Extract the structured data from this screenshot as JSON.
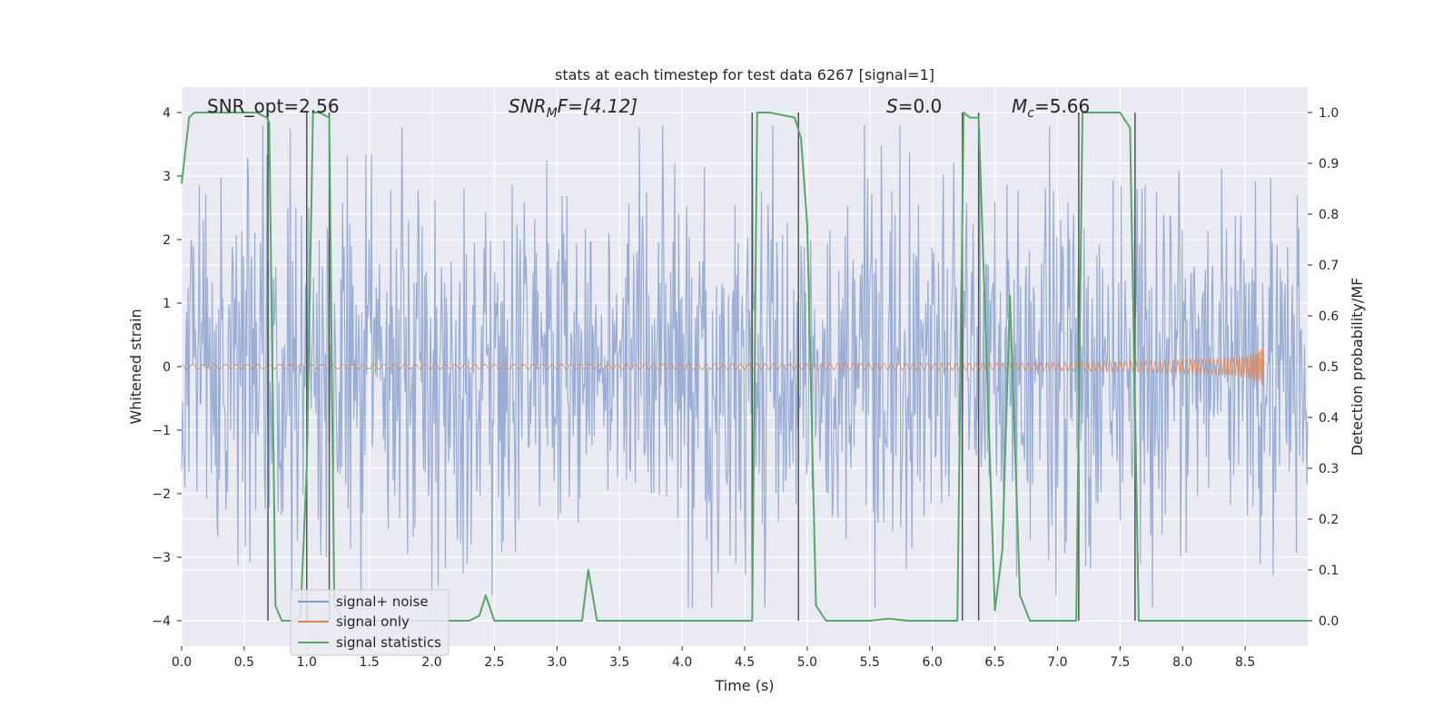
{
  "chart_data": {
    "type": "line",
    "title": "stats at each timestep for test data 6267 [signal=1]",
    "xlabel": "Time (s)",
    "ylabel": "Whitened strain",
    "y2label": "Detection probability/MF",
    "xlim": [
      0.0,
      9.0
    ],
    "ylim": [
      -4.4,
      4.4
    ],
    "y2lim": [
      -0.05,
      1.05
    ],
    "xticks": [
      "0.0",
      "0.5",
      "1.0",
      "1.5",
      "2.0",
      "2.5",
      "3.0",
      "3.5",
      "4.0",
      "4.5",
      "5.0",
      "5.5",
      "6.0",
      "6.5",
      "7.0",
      "7.5",
      "8.0",
      "8.5"
    ],
    "yticks": [
      "−4",
      "−3",
      "−2",
      "−1",
      "0",
      "1",
      "2",
      "3",
      "4"
    ],
    "y2ticks": [
      "0.0",
      "0.1",
      "0.2",
      "0.3",
      "0.4",
      "0.5",
      "0.6",
      "0.7",
      "0.8",
      "0.9",
      "1.0"
    ],
    "grid": true,
    "legend_position": "lower-left",
    "annotations": {
      "snr_opt": "SNR_opt=2.56",
      "snr_mf_base": "SNR",
      "snr_mf_sub": "M",
      "snr_mf_rest": "F=[4.12]",
      "s_base": "S",
      "s_rest": "=0.0",
      "mc_base": "M",
      "mc_sub": "c",
      "mc_rest": "=5.66"
    },
    "colors": {
      "noise": "#7f9acb",
      "signal": "#dd8452",
      "stats": "#55a868",
      "vlines": "#555555",
      "background": "#eaeaf2"
    },
    "series": [
      {
        "name": "signal+ noise",
        "kind": "noise",
        "x_range": [
          0.0,
          9.0
        ],
        "amplitude_typical": 1.6,
        "amplitude_peak": 3.8
      },
      {
        "name": "signal only",
        "kind": "chirp",
        "x_start": 0.0,
        "x_end": 8.65,
        "final_amplitude": 0.33
      },
      {
        "name": "signal statistics",
        "kind": "probability",
        "x": [
          0.0,
          0.06,
          0.1,
          0.2,
          0.3,
          0.4,
          0.5,
          0.6,
          0.68,
          0.7,
          0.75,
          0.8,
          0.9,
          0.95,
          1.0,
          1.05,
          1.1,
          1.18,
          1.22,
          1.3,
          1.4,
          2.3,
          2.38,
          2.43,
          2.5,
          2.6,
          3.2,
          3.25,
          3.32,
          3.4,
          4.5,
          4.56,
          4.6,
          4.7,
          4.9,
          4.95,
          5.0,
          5.07,
          5.15,
          5.5,
          5.65,
          5.8,
          6.2,
          6.25,
          6.3,
          6.37,
          6.5,
          6.56,
          6.62,
          6.7,
          6.78,
          7.0,
          7.15,
          7.2,
          7.25,
          7.5,
          7.58,
          7.65,
          7.72,
          8.0,
          8.3,
          8.6,
          9.0
        ],
        "y": [
          0.86,
          0.99,
          1.0,
          1.0,
          1.0,
          1.0,
          1.0,
          1.0,
          0.99,
          0.98,
          0.03,
          0.0,
          0.0,
          0.01,
          0.3,
          1.0,
          1.0,
          0.99,
          0.03,
          0.0,
          0.0,
          0.0,
          0.01,
          0.05,
          0.0,
          0.0,
          0.0,
          0.1,
          0.0,
          0.0,
          0.0,
          0.0,
          1.0,
          1.0,
          0.99,
          0.95,
          0.78,
          0.03,
          0.0,
          0.0,
          0.004,
          0.0,
          0.0,
          1.0,
          0.99,
          0.99,
          0.02,
          0.14,
          0.64,
          0.05,
          0.0,
          0.0,
          0.0,
          1.0,
          1.0,
          1.0,
          0.97,
          0.0,
          0.0,
          0.0,
          0.0,
          0.0,
          0.0
        ]
      }
    ],
    "vertical_lines_x": [
      0.69,
      1.0,
      1.18,
      4.56,
      4.93,
      6.24,
      6.37,
      7.17,
      7.62
    ]
  }
}
